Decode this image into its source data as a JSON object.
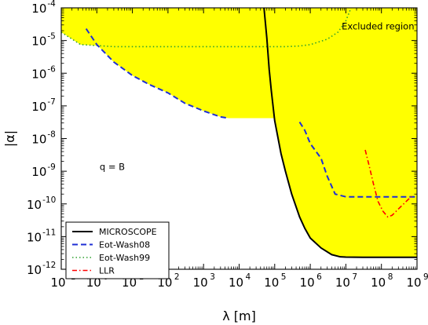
{
  "chart_data": {
    "type": "line",
    "xlabel": "λ [m]",
    "ylabel": "|α|",
    "xscale": "log",
    "yscale": "log",
    "xlim": [
      0.1,
      1000000000
    ],
    "ylim": [
      1e-12,
      0.0001
    ],
    "x_ticks": [
      {
        "base": "10",
        "exp": "-1",
        "value": 0.1
      },
      {
        "base": "10",
        "exp": "0",
        "value": 1
      },
      {
        "base": "10",
        "exp": "1",
        "value": 10
      },
      {
        "base": "10",
        "exp": "2",
        "value": 100
      },
      {
        "base": "10",
        "exp": "3",
        "value": 1000
      },
      {
        "base": "10",
        "exp": "4",
        "value": 10000
      },
      {
        "base": "10",
        "exp": "5",
        "value": 100000
      },
      {
        "base": "10",
        "exp": "6",
        "value": 1000000
      },
      {
        "base": "10",
        "exp": "7",
        "value": 10000000
      },
      {
        "base": "10",
        "exp": "8",
        "value": 100000000
      },
      {
        "base": "10",
        "exp": "9",
        "value": 1000000000
      }
    ],
    "y_ticks": [
      {
        "base": "10",
        "exp": "-12",
        "value": 1e-12
      },
      {
        "base": "10",
        "exp": "-11",
        "value": 1e-11
      },
      {
        "base": "10",
        "exp": "-10",
        "value": 1e-10
      },
      {
        "base": "10",
        "exp": "-9",
        "value": 1e-09
      },
      {
        "base": "10",
        "exp": "-8",
        "value": 1e-08
      },
      {
        "base": "10",
        "exp": "-7",
        "value": 1e-07
      },
      {
        "base": "10",
        "exp": "-6",
        "value": 1e-06
      },
      {
        "base": "10",
        "exp": "-5",
        "value": 1e-05
      },
      {
        "base": "10",
        "exp": "-4",
        "value": 0.0001
      }
    ],
    "annotations": [
      {
        "text": "Excluded region",
        "x": 80000000,
        "y": 2.2e-05
      },
      {
        "text": "q = B",
        "x": 1.2,
        "y": 1.1e-09
      }
    ],
    "legend": {
      "placement": "lower-left"
    },
    "excluded_region": {
      "color": "#ffff00",
      "boundary": [
        [
          0.1,
          0.0001
        ],
        [
          0.1,
          1.8e-05
        ],
        [
          0.35,
          7.5e-06
        ],
        [
          1,
          7e-06
        ],
        [
          3,
          6.5e-06
        ],
        [
          10,
          6.5e-06
        ],
        [
          100,
          6.5e-06
        ],
        [
          1000,
          6.5e-06
        ],
        [
          10000,
          6.5e-06
        ],
        [
          40000,
          6.5e-06
        ],
        [
          100000,
          6.5e-06
        ],
        [
          200000,
          6.5e-06
        ],
        [
          500000,
          6.8e-06
        ],
        [
          1000000,
          7.5e-06
        ],
        [
          2000000,
          9.5e-06
        ],
        [
          3000000,
          1.1e-05
        ],
        [
          6000000,
          1.8e-05
        ],
        [
          10000000,
          4e-05
        ],
        [
          14000000,
          0.0001
        ]
      ]
    },
    "series": [
      {
        "name": "MICROSCOPE",
        "color": "#000000",
        "style": "solid",
        "points": [
          [
            50000,
            0.0001
          ],
          [
            60000,
            1.2e-05
          ],
          [
            70000,
            1.3e-06
          ],
          [
            80000,
            3e-07
          ],
          [
            100000,
            3.5e-08
          ],
          [
            150000,
            3.5e-09
          ],
          [
            200000,
            1e-09
          ],
          [
            300000,
            2e-10
          ],
          [
            500000,
            4e-11
          ],
          [
            700000,
            1.8e-11
          ],
          [
            1000000,
            9e-12
          ],
          [
            2000000,
            4.5e-12
          ],
          [
            4000000,
            2.8e-12
          ],
          [
            7000000,
            2.4e-12
          ],
          [
            10000000,
            2.35e-12
          ],
          [
            30000000,
            2.33e-12
          ],
          [
            100000000,
            2.33e-12
          ],
          [
            1000000000,
            2.33e-12
          ]
        ]
      },
      {
        "name": "Eot-Wash08",
        "color": "#1f2fd6",
        "style": "dashed",
        "segments": [
          [
            [
              0.5,
              2.3e-05
            ],
            [
              1,
              7.5e-06
            ],
            [
              3,
              2.2e-06
            ],
            [
              10,
              8.5e-07
            ],
            [
              30,
              4.5e-07
            ],
            [
              100,
              2.5e-07
            ],
            [
              300,
              1.2e-07
            ],
            [
              1000,
              7e-08
            ],
            [
              3000,
              4.6e-08
            ],
            [
              5000,
              4.2e-08
            ]
          ],
          [
            [
              500000,
              3.2e-08
            ],
            [
              700000,
              1.8e-08
            ],
            [
              1000000,
              7e-09
            ],
            [
              2000000,
              2.5e-09
            ],
            [
              3000000,
              7e-10
            ],
            [
              5000000,
              2e-10
            ],
            [
              10000000,
              1.65e-10
            ],
            [
              100000000,
              1.65e-10
            ],
            [
              1000000000,
              1.65e-10
            ]
          ]
        ]
      },
      {
        "name": "Eot-Wash99",
        "color": "#2ea02e",
        "style": "dotted",
        "points": [
          [
            0.1,
            1.8e-05
          ],
          [
            0.35,
            7.5e-06
          ],
          [
            1,
            7e-06
          ],
          [
            3,
            6.5e-06
          ],
          [
            10,
            6.5e-06
          ],
          [
            100,
            6.5e-06
          ],
          [
            1000,
            6.5e-06
          ],
          [
            10000,
            6.5e-06
          ],
          [
            40000,
            6.5e-06
          ],
          [
            100000,
            6.5e-06
          ],
          [
            200000,
            6.5e-06
          ],
          [
            500000,
            6.8e-06
          ],
          [
            1000000,
            7.5e-06
          ],
          [
            2000000,
            9.5e-06
          ],
          [
            3000000,
            1.1e-05
          ],
          [
            6000000,
            1.8e-05
          ],
          [
            10000000,
            4e-05
          ],
          [
            14000000,
            0.0001
          ]
        ]
      },
      {
        "name": "LLR",
        "color": "#ff0000",
        "style": "dashdot",
        "points": [
          [
            35000000,
            4.5e-09
          ],
          [
            45000000,
            1.5e-09
          ],
          [
            60000000,
            4e-10
          ],
          [
            80000000,
            1.2e-10
          ],
          [
            110000000,
            6e-11
          ],
          [
            150000000,
            4e-11
          ],
          [
            200000000,
            4.5e-11
          ],
          [
            300000000,
            7e-11
          ],
          [
            500000000,
            1.2e-10
          ],
          [
            700000000,
            1.7e-10
          ]
        ]
      }
    ]
  }
}
